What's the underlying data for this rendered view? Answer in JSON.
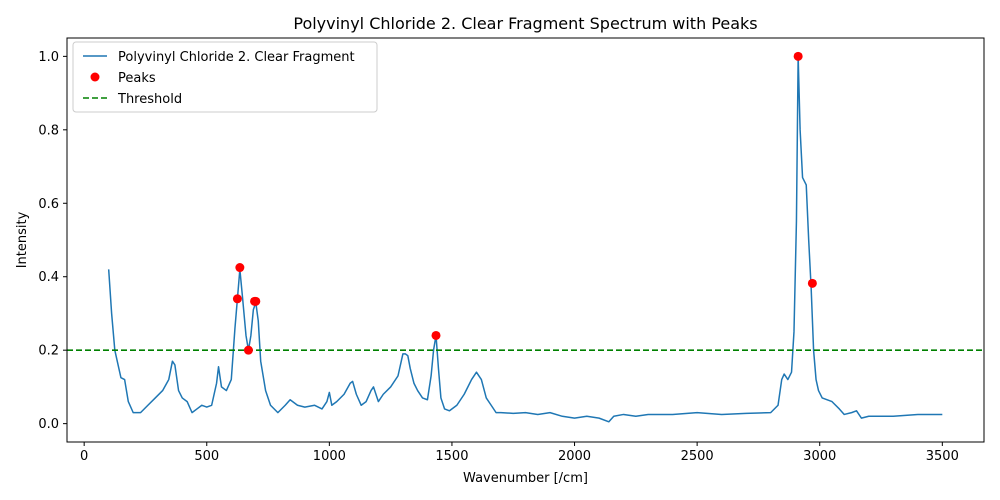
{
  "chart_data": {
    "type": "line",
    "title": "Polyvinyl Chloride 2. Clear Fragment Spectrum with Peaks",
    "xlabel": "Wavenumber [/cm]",
    "ylabel": "Intensity",
    "xlim": [
      -70,
      3670
    ],
    "ylim": [
      -0.05,
      1.05
    ],
    "xticks": [
      0,
      500,
      1000,
      1500,
      2000,
      2500,
      3000,
      3500
    ],
    "yticks": [
      0.0,
      0.2,
      0.4,
      0.6,
      0.8,
      1.0
    ],
    "xtick_labels": [
      "0",
      "500",
      "1000",
      "1500",
      "2000",
      "2500",
      "3000",
      "3500"
    ],
    "ytick_labels": [
      "0.0",
      "0.2",
      "0.4",
      "0.6",
      "0.8",
      "1.0"
    ],
    "grid": false,
    "legend_position": "top-left",
    "series": [
      {
        "name": "Polyvinyl Chloride 2. Clear Fragment",
        "kind": "line",
        "color": "#1f77b4",
        "x": [
          100,
          112,
          125,
          150,
          165,
          180,
          200,
          230,
          260,
          290,
          320,
          345,
          360,
          370,
          385,
          400,
          420,
          440,
          460,
          480,
          500,
          520,
          540,
          548,
          560,
          580,
          600,
          615,
          625,
          635,
          645,
          660,
          670,
          680,
          690,
          700,
          710,
          720,
          740,
          760,
          790,
          820,
          840,
          870,
          900,
          940,
          970,
          990,
          1000,
          1010,
          1030,
          1060,
          1085,
          1095,
          1110,
          1130,
          1150,
          1170,
          1180,
          1200,
          1220,
          1250,
          1280,
          1300,
          1310,
          1320,
          1330,
          1345,
          1360,
          1380,
          1400,
          1415,
          1425,
          1435,
          1445,
          1455,
          1470,
          1490,
          1520,
          1550,
          1580,
          1600,
          1620,
          1640,
          1660,
          1680,
          1700,
          1750,
          1800,
          1850,
          1900,
          1950,
          2000,
          2050,
          2100,
          2140,
          2160,
          2200,
          2250,
          2300,
          2400,
          2500,
          2600,
          2700,
          2800,
          2830,
          2845,
          2855,
          2870,
          2885,
          2895,
          2905,
          2912,
          2920,
          2930,
          2945,
          2955,
          2965,
          2975,
          2985,
          2995,
          3010,
          3050,
          3080,
          3100,
          3130,
          3150,
          3170,
          3200,
          3300,
          3400,
          3500
        ],
        "y": [
          0.42,
          0.3,
          0.2,
          0.125,
          0.12,
          0.06,
          0.03,
          0.03,
          0.05,
          0.07,
          0.09,
          0.12,
          0.17,
          0.16,
          0.09,
          0.07,
          0.06,
          0.03,
          0.04,
          0.05,
          0.045,
          0.05,
          0.11,
          0.155,
          0.1,
          0.09,
          0.12,
          0.26,
          0.34,
          0.42,
          0.35,
          0.24,
          0.2,
          0.24,
          0.31,
          0.33,
          0.28,
          0.17,
          0.09,
          0.05,
          0.03,
          0.05,
          0.065,
          0.05,
          0.045,
          0.05,
          0.04,
          0.06,
          0.085,
          0.05,
          0.06,
          0.08,
          0.11,
          0.115,
          0.08,
          0.05,
          0.06,
          0.09,
          0.1,
          0.06,
          0.08,
          0.1,
          0.13,
          0.19,
          0.19,
          0.185,
          0.15,
          0.11,
          0.09,
          0.07,
          0.065,
          0.13,
          0.2,
          0.24,
          0.15,
          0.07,
          0.04,
          0.035,
          0.05,
          0.08,
          0.12,
          0.14,
          0.12,
          0.07,
          0.05,
          0.03,
          0.03,
          0.028,
          0.03,
          0.025,
          0.03,
          0.02,
          0.015,
          0.02,
          0.015,
          0.005,
          0.02,
          0.025,
          0.02,
          0.025,
          0.025,
          0.03,
          0.025,
          0.028,
          0.03,
          0.05,
          0.12,
          0.135,
          0.12,
          0.14,
          0.25,
          0.55,
          1.0,
          0.8,
          0.67,
          0.65,
          0.5,
          0.37,
          0.2,
          0.12,
          0.09,
          0.07,
          0.06,
          0.04,
          0.025,
          0.03,
          0.035,
          0.015,
          0.02,
          0.02,
          0.025,
          0.025
        ]
      },
      {
        "name": "Peaks",
        "kind": "scatter",
        "color": "#ff0000",
        "x": [
          625,
          635,
          670,
          695,
          700,
          1435,
          2912,
          2970
        ],
        "y": [
          0.34,
          0.425,
          0.2,
          0.333,
          0.333,
          0.24,
          1.0,
          0.382
        ]
      },
      {
        "name": "Threshold",
        "kind": "hline",
        "color": "#008000",
        "y": 0.2
      }
    ]
  }
}
